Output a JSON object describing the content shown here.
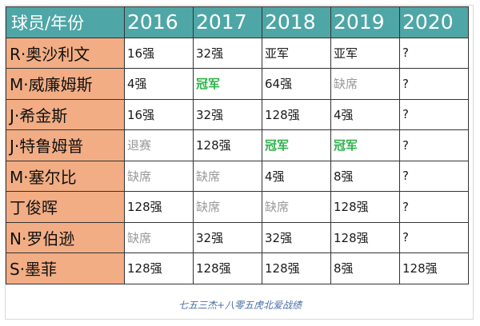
{
  "table": {
    "corner_header": "球员/年份",
    "years": [
      "2016",
      "2017",
      "2018",
      "2019",
      "2020"
    ],
    "rows": [
      {
        "player": "R·奥沙利文",
        "results": [
          "16强",
          "32强",
          "亚军",
          "亚军",
          "?"
        ]
      },
      {
        "player": "M·威廉姆斯",
        "results": [
          "4强",
          "冠军",
          "64强",
          "缺席",
          "?"
        ]
      },
      {
        "player": "J·希金斯",
        "results": [
          "16强",
          "32强",
          "128强",
          "4强",
          "?"
        ]
      },
      {
        "player": "J·特鲁姆普",
        "results": [
          "退赛",
          "128强",
          "冠军",
          "冠军",
          "?"
        ]
      },
      {
        "player": "M·塞尔比",
        "results": [
          "缺席",
          "缺席",
          "4强",
          "8强",
          "?"
        ]
      },
      {
        "player": "丁俊晖",
        "results": [
          "128强",
          "缺席",
          "缺席",
          "128强",
          "?"
        ]
      },
      {
        "player": "N·罗伯逊",
        "results": [
          "缺席",
          "32强",
          "32强",
          "128强",
          "?"
        ]
      },
      {
        "player": "S·墨菲",
        "results": [
          "128强",
          "128强",
          "128强",
          "8强",
          "128强"
        ]
      }
    ]
  },
  "styles": {
    "header_bg": "#4fa6a6",
    "player_bg": "#f2ad84",
    "champion_color": "#2db34a",
    "muted_color": "#9a9a9a"
  },
  "caption": "七五三杰+八零五虎北爱战绩"
}
